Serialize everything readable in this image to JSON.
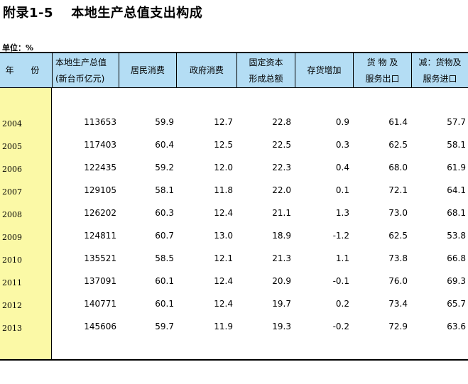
{
  "title": "附录1-5　 本地生产总值支出构成",
  "unit": "单位：%",
  "headers": {
    "year": "年 份",
    "gdp_line1": "本地生产总值",
    "gdp_line2": "(新台币亿元)",
    "household": "居民消费",
    "government": "政府消费",
    "fixed_line1": "固定资本",
    "fixed_line2": "形成总额",
    "inventory": "存货增加",
    "exports_line1": "货 物 及",
    "exports_line2": "服务出口",
    "imports_line1": "减：货物及",
    "imports_line2": "服务进口"
  },
  "rows": [
    {
      "year": "2004",
      "gdp": "113653",
      "household": "59.9",
      "government": "12.7",
      "fixed": "22.8",
      "inventory": "0.9",
      "exports": "61.4",
      "imports": "57.7"
    },
    {
      "year": "2005",
      "gdp": "117403",
      "household": "60.4",
      "government": "12.5",
      "fixed": "22.5",
      "inventory": "0.3",
      "exports": "62.5",
      "imports": "58.1"
    },
    {
      "year": "2006",
      "gdp": "122435",
      "household": "59.2",
      "government": "12.0",
      "fixed": "22.3",
      "inventory": "0.4",
      "exports": "68.0",
      "imports": "61.9"
    },
    {
      "year": "2007",
      "gdp": "129105",
      "household": "58.1",
      "government": "11.8",
      "fixed": "22.0",
      "inventory": "0.1",
      "exports": "72.1",
      "imports": "64.1"
    },
    {
      "year": "2008",
      "gdp": "126202",
      "household": "60.3",
      "government": "12.4",
      "fixed": "21.1",
      "inventory": "1.3",
      "exports": "73.0",
      "imports": "68.1"
    },
    {
      "year": "2009",
      "gdp": "124811",
      "household": "60.7",
      "government": "13.0",
      "fixed": "18.9",
      "inventory": "-1.2",
      "exports": "62.5",
      "imports": "53.8"
    },
    {
      "year": "2010",
      "gdp": "135521",
      "household": "58.5",
      "government": "12.1",
      "fixed": "21.3",
      "inventory": "1.1",
      "exports": "73.8",
      "imports": "66.8"
    },
    {
      "year": "2011",
      "gdp": "137091",
      "household": "60.1",
      "government": "12.4",
      "fixed": "20.9",
      "inventory": "-0.1",
      "exports": "76.0",
      "imports": "69.3"
    },
    {
      "year": "2012",
      "gdp": "140771",
      "household": "60.1",
      "government": "12.4",
      "fixed": "19.7",
      "inventory": "0.2",
      "exports": "73.4",
      "imports": "65.7"
    },
    {
      "year": "2013",
      "gdp": "145606",
      "household": "59.7",
      "government": "11.9",
      "fixed": "19.3",
      "inventory": "-0.2",
      "exports": "72.9",
      "imports": "63.6"
    }
  ]
}
